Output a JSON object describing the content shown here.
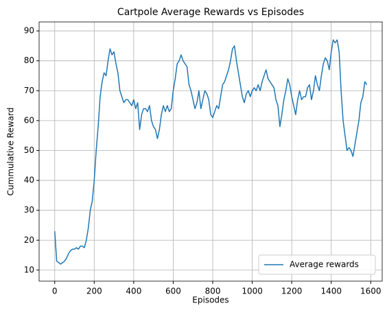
{
  "chart_data": {
    "type": "line",
    "title": "Cartpole Average Rewards vs Episodes",
    "xlabel": "Episodes",
    "ylabel": "Cummulative Reward",
    "x": [
      0,
      10,
      20,
      30,
      40,
      50,
      60,
      70,
      80,
      90,
      100,
      110,
      120,
      130,
      140,
      150,
      160,
      170,
      180,
      190,
      200,
      210,
      220,
      230,
      240,
      250,
      260,
      270,
      280,
      290,
      300,
      310,
      320,
      330,
      340,
      350,
      360,
      370,
      380,
      390,
      400,
      410,
      420,
      430,
      440,
      450,
      460,
      470,
      480,
      490,
      500,
      510,
      520,
      530,
      540,
      550,
      560,
      570,
      580,
      590,
      600,
      610,
      620,
      630,
      640,
      650,
      660,
      670,
      680,
      690,
      700,
      710,
      720,
      730,
      740,
      750,
      760,
      770,
      780,
      790,
      800,
      810,
      820,
      830,
      840,
      850,
      860,
      870,
      880,
      890,
      900,
      910,
      920,
      930,
      940,
      950,
      960,
      970,
      980,
      990,
      1000,
      1010,
      1020,
      1030,
      1040,
      1050,
      1060,
      1070,
      1080,
      1090,
      1100,
      1110,
      1120,
      1130,
      1140,
      1150,
      1160,
      1170,
      1180,
      1190,
      1200,
      1210,
      1220,
      1230,
      1240,
      1250,
      1260,
      1270,
      1280,
      1290,
      1300,
      1310,
      1320,
      1330,
      1340,
      1350,
      1360,
      1370,
      1380,
      1390,
      1400,
      1410,
      1420,
      1430,
      1440,
      1450,
      1460,
      1470,
      1480,
      1490,
      1500,
      1510,
      1520,
      1530,
      1540,
      1550,
      1560,
      1570,
      1580
    ],
    "series": [
      {
        "name": "Average rewards",
        "color": "#1f77b4",
        "values": [
          23,
          13,
          12.5,
          12,
          12.5,
          13,
          14,
          15.5,
          16.5,
          17,
          17,
          17.5,
          17,
          18,
          18,
          17.5,
          20,
          24,
          30,
          33,
          40,
          50,
          58,
          68,
          73,
          76,
          75,
          80,
          84,
          82,
          83,
          79,
          76,
          70,
          68,
          66,
          67,
          67,
          66,
          65,
          67,
          64,
          66,
          57,
          62,
          64,
          64,
          63,
          65,
          60,
          58,
          57,
          54,
          57,
          62,
          65,
          63,
          65,
          63,
          64,
          70,
          74,
          79,
          80,
          82,
          80,
          79,
          78,
          72,
          70,
          67,
          64,
          66,
          70,
          64,
          67,
          70,
          69,
          67,
          62,
          61,
          63,
          65,
          64,
          68,
          72,
          73,
          75,
          77,
          80,
          84,
          85,
          80,
          76,
          72,
          68,
          66,
          69,
          70,
          68,
          70,
          71,
          70,
          72,
          70,
          73,
          75,
          77,
          74,
          73,
          72,
          71,
          67,
          65,
          58,
          62,
          67,
          70,
          74,
          72,
          68,
          65,
          62,
          67,
          70,
          67,
          68,
          68,
          71,
          72,
          67,
          70,
          75,
          72,
          70,
          75,
          79,
          81,
          80,
          77,
          83,
          87,
          86,
          87,
          83,
          70,
          60,
          55,
          50,
          51,
          50,
          48,
          52,
          56,
          60,
          66,
          68,
          73,
          72
        ]
      }
    ],
    "xlim": [
      -79,
      1658
    ],
    "xticks": [
      0,
      200,
      400,
      600,
      800,
      1000,
      1200,
      1400,
      1600
    ],
    "ylim": [
      6.3,
      93
    ],
    "yticks": [
      10,
      20,
      30,
      40,
      50,
      60,
      70,
      80,
      90
    ],
    "grid": true,
    "legend": "lower right"
  }
}
